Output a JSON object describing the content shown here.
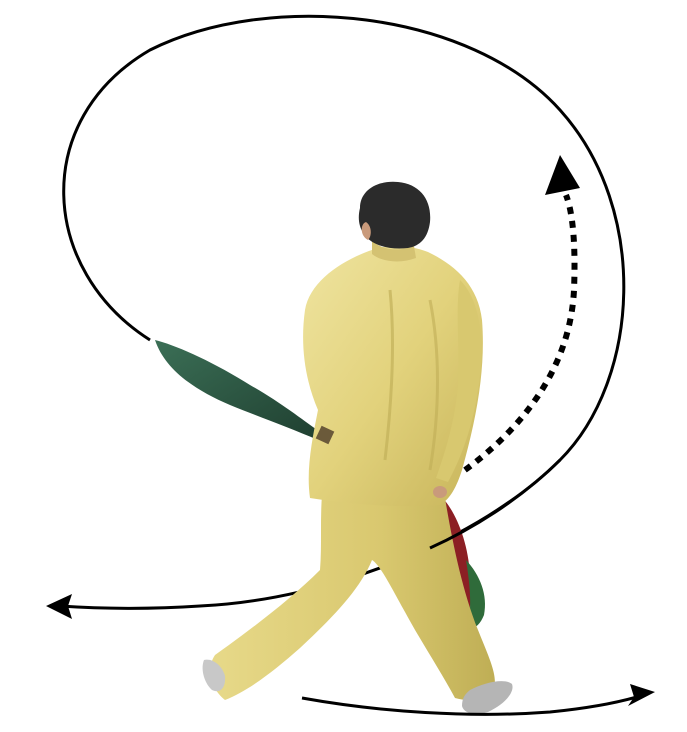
{
  "scene": {
    "subject": "martial-artist-with-broadsword",
    "colors": {
      "background": "#ffffff",
      "arrow": "#000000",
      "uniform": "#e6d98c",
      "uniform_shade": "#c9b95f",
      "blade": "#2f5a45",
      "hair": "#2b2b2b",
      "skin": "#c99a7b",
      "sash_red": "#8c1f24",
      "sash_green": "#2f6b3a",
      "shoe": "#c8c8c8"
    },
    "paths": [
      {
        "name": "large-spiral-arrow",
        "style": "solid",
        "arrowhead": "left"
      },
      {
        "name": "dotted-rising-arrow",
        "style": "dotted",
        "arrowhead": "up"
      },
      {
        "name": "ground-step-arrow",
        "style": "solid",
        "arrowhead": "right"
      }
    ]
  }
}
